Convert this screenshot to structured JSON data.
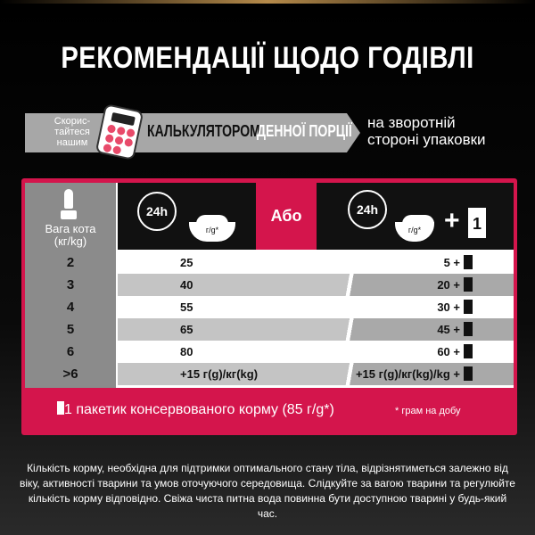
{
  "title": "РЕКОМЕНДАЦІЇ ЩОДО ГОДІВЛІ",
  "banner": {
    "use": "Скорис-\nтайтеся\nнашим",
    "calculator": "КАЛЬКУЛЯТОРОМ",
    "portion": "ДЕННОЇ ПОРЦІЇ",
    "back_line1": "на зворотній",
    "back_line2": "стороні упаковки"
  },
  "colors": {
    "accent": "#d4154c",
    "grey": "#a7a7a7"
  },
  "table": {
    "weight_header": "Вага кота\n(кг/kg)",
    "clock_label": "24h",
    "bowl_label": "г/g*",
    "or_label": "Або",
    "plus": "+",
    "pouch_count": "1",
    "rows": [
      {
        "weight": "2",
        "dry": "25",
        "mixed": "5 +"
      },
      {
        "weight": "3",
        "dry": "40",
        "mixed": "20 +"
      },
      {
        "weight": "4",
        "dry": "55",
        "mixed": "30 +"
      },
      {
        "weight": "5",
        "dry": "65",
        "mixed": "45 +"
      },
      {
        "weight": "6",
        "dry": "80",
        "mixed": "60 +"
      },
      {
        "weight": ">6",
        "dry": "+15 г(g)/кг(kg)",
        "mixed": "+15 г(g)/кг(kg)/kg +"
      }
    ]
  },
  "footer": {
    "pouch_note": "1 пакетик консервованого корму (85 г/g*)",
    "per_day": "* грам на добу"
  },
  "note": "Кількість корму, необхідна для підтримки оптимального стану тіла, відрізнятиметься залежно від віку, активності тварини та умов оточуючого середовища. Слідкуйте за вагою тварини та регулюйте кількість корму відповідно. Свіжа чиста питна вода повинна бути доступною тварині у будь-який час."
}
